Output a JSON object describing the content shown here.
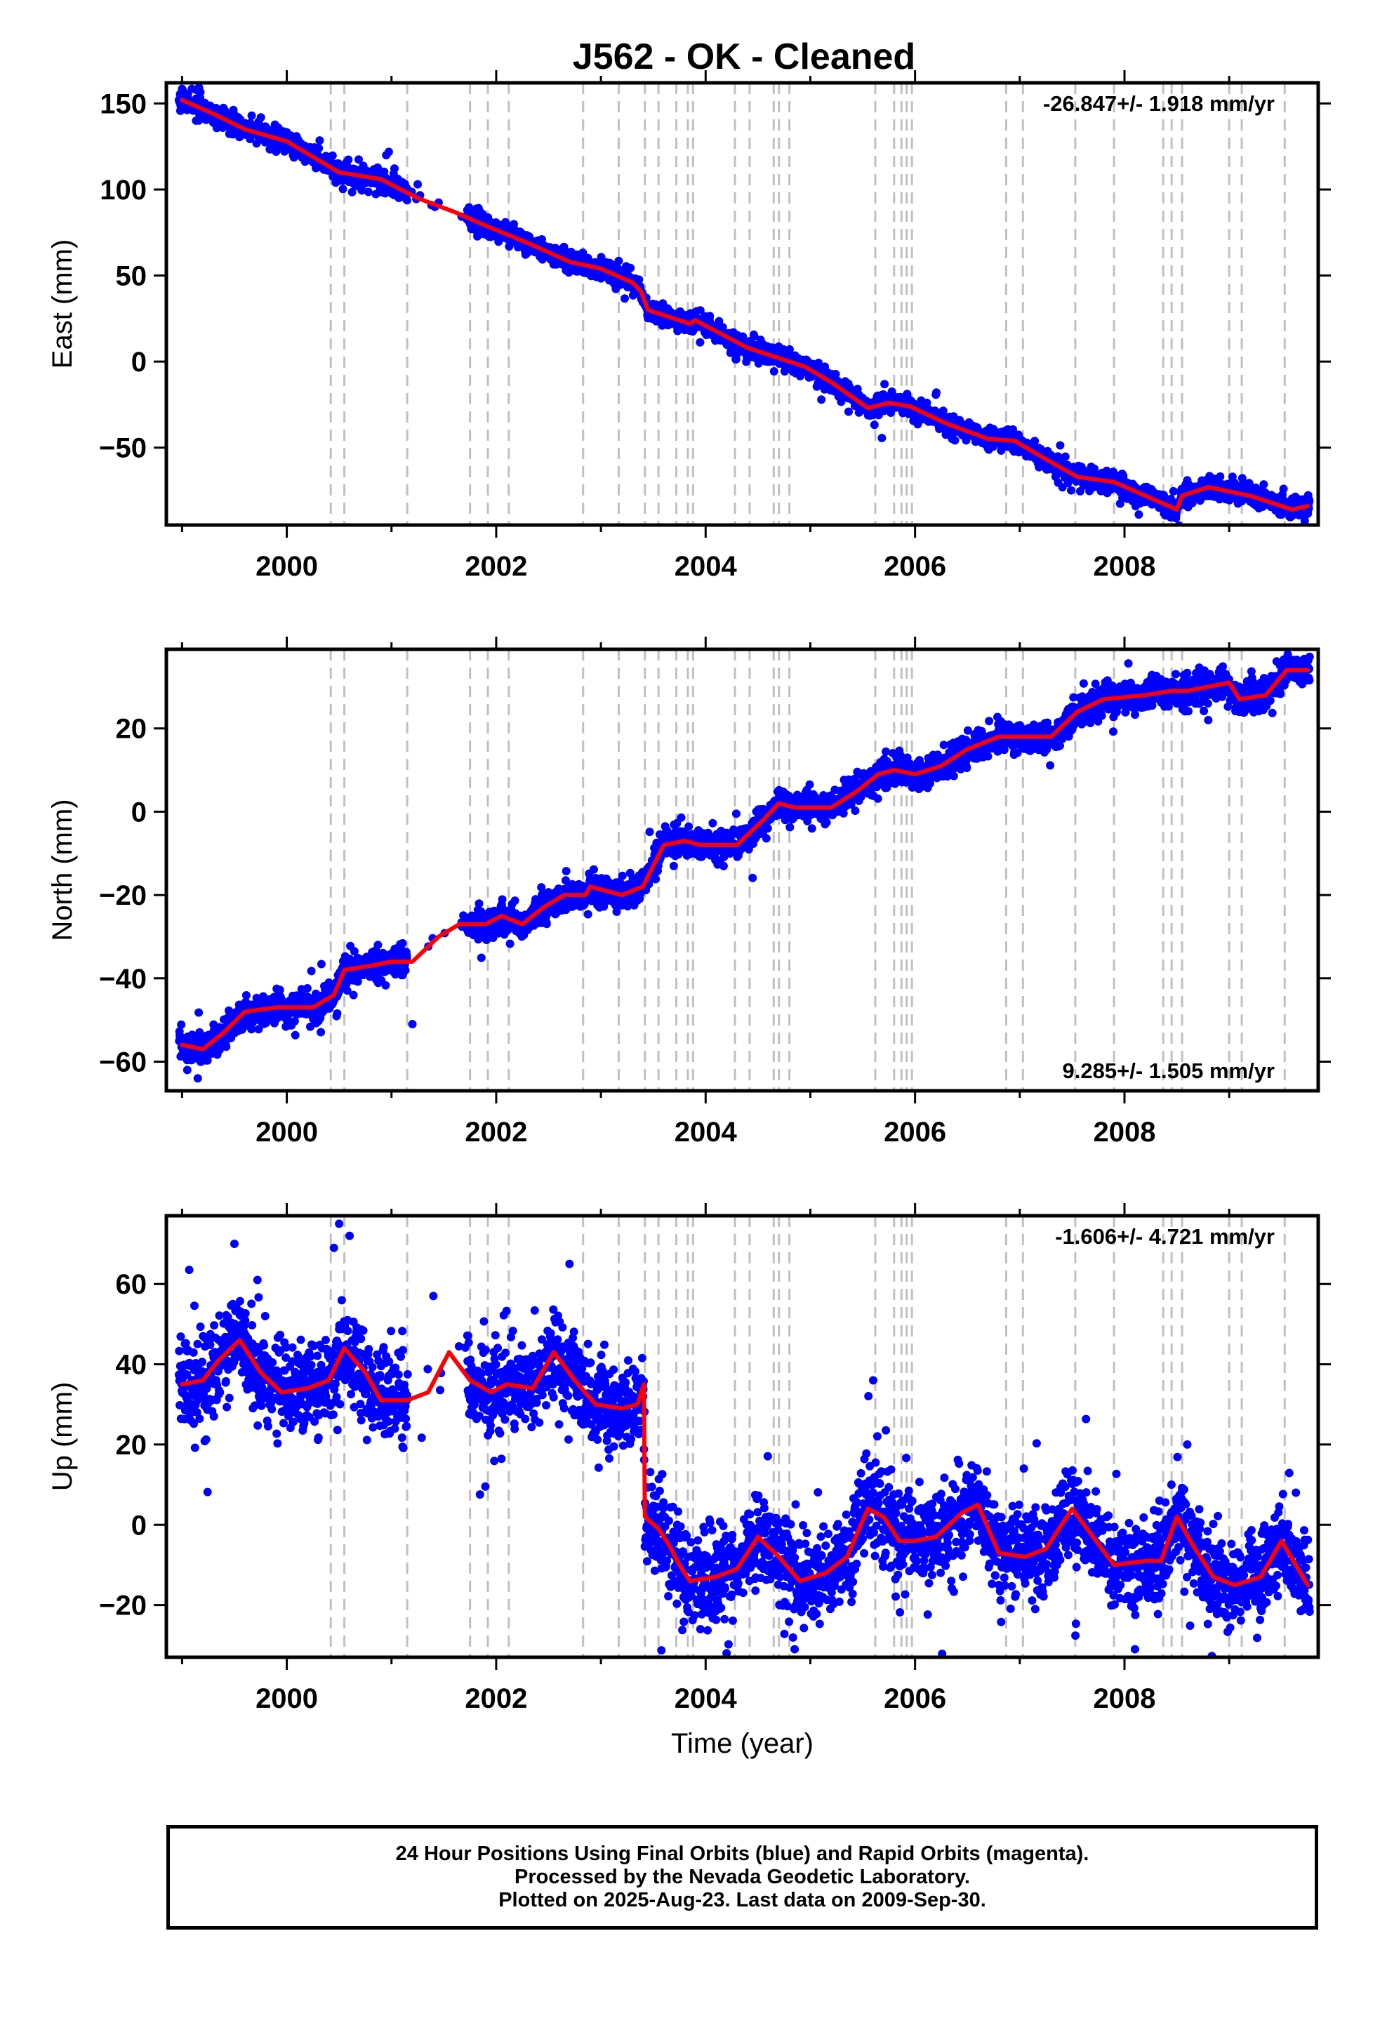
{
  "title": "J562  - OK - Cleaned",
  "footer": {
    "line1": "24 Hour Positions Using Final Orbits (blue) and Rapid Orbits (magenta).",
    "line2": "Processed by the Nevada Geodetic Laboratory.",
    "line3": "Plotted on 2025-Aug-23. Last data on 2009-Sep-30."
  },
  "colors": {
    "points": "#0000ff",
    "model": "#ff0000",
    "event_lines": "#c0c0c0",
    "frame": "#000000"
  },
  "chart_data": [
    {
      "type": "scatter",
      "id": "east",
      "ylabel": "East (mm)",
      "xlabel": "",
      "xlim": [
        1998.85,
        2009.85
      ],
      "ylim": [
        -95,
        162
      ],
      "xticks": [
        2000,
        2002,
        2004,
        2006,
        2008
      ],
      "yticks": [
        -50,
        0,
        50,
        100,
        150
      ],
      "rate_label": "-26.847+/- 1.918 mm/yr",
      "rate_position": "top-right",
      "event_lines": [
        2000.42,
        2000.55,
        2001.15,
        2001.75,
        2001.92,
        2002.12,
        2002.83,
        2003.17,
        2003.42,
        2003.55,
        2003.72,
        2003.83,
        2003.88,
        2004.28,
        2004.42,
        2004.65,
        2004.7,
        2004.8,
        2005.62,
        2005.8,
        2005.87,
        2005.92,
        2005.97,
        2006.87,
        2007.03,
        2007.53,
        2007.9,
        2008.37,
        2008.45,
        2008.55,
        2009.0,
        2009.12,
        2009.53
      ],
      "model_knots": [
        [
          1999.0,
          152
        ],
        [
          1999.3,
          144
        ],
        [
          1999.6,
          135
        ],
        [
          2000.0,
          128
        ],
        [
          2000.25,
          119
        ],
        [
          2000.5,
          110
        ],
        [
          2000.9,
          106
        ],
        [
          2001.25,
          95
        ],
        [
          2001.6,
          87
        ],
        [
          2001.9,
          79
        ],
        [
          2002.3,
          69
        ],
        [
          2002.7,
          58
        ],
        [
          2003.0,
          54
        ],
        [
          2003.3,
          46
        ],
        [
          2003.38,
          41
        ],
        [
          2003.45,
          30
        ],
        [
          2003.7,
          25
        ],
        [
          2003.85,
          22
        ],
        [
          2003.9,
          24
        ],
        [
          2004.15,
          16
        ],
        [
          2004.4,
          8
        ],
        [
          2004.7,
          2
        ],
        [
          2004.95,
          -3
        ],
        [
          2005.2,
          -12
        ],
        [
          2005.55,
          -27
        ],
        [
          2005.75,
          -24
        ],
        [
          2005.95,
          -26
        ],
        [
          2006.3,
          -36
        ],
        [
          2006.7,
          -45
        ],
        [
          2006.95,
          -46
        ],
        [
          2007.2,
          -55
        ],
        [
          2007.55,
          -67
        ],
        [
          2007.9,
          -70
        ],
        [
          2008.2,
          -78
        ],
        [
          2008.5,
          -86
        ],
        [
          2008.55,
          -78
        ],
        [
          2008.8,
          -73
        ],
        [
          2009.2,
          -78
        ],
        [
          2009.6,
          -86
        ],
        [
          2009.75,
          -84
        ]
      ],
      "noise_sd": 2.8,
      "outliers": [
        [
          1999.0,
          157
        ],
        [
          2000.95,
          120
        ],
        [
          2001.25,
          103
        ],
        [
          2008.85,
          -68
        ],
        [
          2009.3,
          -75
        ]
      ]
    },
    {
      "type": "scatter",
      "id": "north",
      "ylabel": "North (mm)",
      "xlabel": "",
      "xlim": [
        1998.85,
        2009.85
      ],
      "ylim": [
        -67,
        39
      ],
      "xticks": [
        2000,
        2002,
        2004,
        2006,
        2008
      ],
      "yticks": [
        -60,
        -40,
        -20,
        0,
        20
      ],
      "rate_label": "9.285+/- 1.505 mm/yr",
      "rate_position": "bottom-right",
      "event_lines": [
        2000.42,
        2000.55,
        2001.15,
        2001.75,
        2001.92,
        2002.12,
        2002.83,
        2003.17,
        2003.42,
        2003.55,
        2003.72,
        2003.83,
        2003.88,
        2004.28,
        2004.42,
        2004.65,
        2004.7,
        2004.8,
        2005.62,
        2005.8,
        2005.87,
        2005.92,
        2005.97,
        2006.87,
        2007.03,
        2007.53,
        2007.9,
        2008.37,
        2008.45,
        2008.55,
        2009.0,
        2009.12,
        2009.53
      ],
      "model_knots": [
        [
          1999.0,
          -56
        ],
        [
          1999.2,
          -57
        ],
        [
          1999.4,
          -53
        ],
        [
          1999.6,
          -48
        ],
        [
          1999.9,
          -47
        ],
        [
          2000.25,
          -47
        ],
        [
          2000.45,
          -44
        ],
        [
          2000.55,
          -38
        ],
        [
          2000.8,
          -37
        ],
        [
          2001.0,
          -36
        ],
        [
          2001.2,
          -36
        ],
        [
          2001.45,
          -30
        ],
        [
          2001.65,
          -27
        ],
        [
          2001.9,
          -27
        ],
        [
          2002.05,
          -25
        ],
        [
          2002.25,
          -27
        ],
        [
          2002.45,
          -23
        ],
        [
          2002.65,
          -20
        ],
        [
          2002.85,
          -20
        ],
        [
          2002.9,
          -18
        ],
        [
          2003.2,
          -20
        ],
        [
          2003.4,
          -18
        ],
        [
          2003.6,
          -8
        ],
        [
          2003.8,
          -7
        ],
        [
          2003.95,
          -8
        ],
        [
          2004.3,
          -8
        ],
        [
          2004.55,
          -2
        ],
        [
          2004.7,
          2
        ],
        [
          2004.85,
          1
        ],
        [
          2005.2,
          1
        ],
        [
          2005.45,
          5
        ],
        [
          2005.65,
          9
        ],
        [
          2005.8,
          10
        ],
        [
          2006.0,
          9
        ],
        [
          2006.25,
          11
        ],
        [
          2006.5,
          15
        ],
        [
          2006.8,
          18
        ],
        [
          2007.05,
          18
        ],
        [
          2007.3,
          18
        ],
        [
          2007.55,
          24
        ],
        [
          2007.8,
          27
        ],
        [
          2008.2,
          28
        ],
        [
          2008.45,
          29
        ],
        [
          2008.6,
          29
        ],
        [
          2009.0,
          31
        ],
        [
          2009.1,
          27
        ],
        [
          2009.35,
          28
        ],
        [
          2009.55,
          34
        ],
        [
          2009.75,
          34
        ]
      ],
      "noise_sd": 1.7,
      "outliers": [
        [
          1999.05,
          -62
        ],
        [
          1999.15,
          -64
        ],
        [
          2001.2,
          -51
        ],
        [
          2003.15,
          -24
        ],
        [
          2008.8,
          22
        ],
        [
          2009.5,
          33
        ]
      ]
    },
    {
      "type": "scatter",
      "id": "up",
      "ylabel": "Up (mm)",
      "xlabel": "Time (year)",
      "xlim": [
        1998.85,
        2009.85
      ],
      "ylim": [
        -33,
        77
      ],
      "xticks": [
        2000,
        2002,
        2004,
        2006,
        2008
      ],
      "yticks": [
        -20,
        0,
        20,
        40,
        60
      ],
      "rate_label": "-1.606+/- 4.721 mm/yr",
      "rate_position": "top-right",
      "event_lines": [
        2000.42,
        2000.55,
        2001.15,
        2001.75,
        2001.92,
        2002.12,
        2002.83,
        2003.17,
        2003.42,
        2003.55,
        2003.72,
        2003.83,
        2003.88,
        2004.28,
        2004.42,
        2004.65,
        2004.7,
        2004.8,
        2005.62,
        2005.8,
        2005.87,
        2005.92,
        2005.97,
        2006.87,
        2007.03,
        2007.53,
        2007.9,
        2008.37,
        2008.45,
        2008.55,
        2009.0,
        2009.12,
        2009.53
      ],
      "model_knots": [
        [
          1999.0,
          35
        ],
        [
          1999.2,
          36
        ],
        [
          1999.35,
          41
        ],
        [
          1999.55,
          46
        ],
        [
          1999.75,
          38
        ],
        [
          1999.95,
          33
        ],
        [
          2000.2,
          34
        ],
        [
          2000.4,
          36
        ],
        [
          2000.55,
          44
        ],
        [
          2000.75,
          38
        ],
        [
          2000.9,
          31
        ],
        [
          2001.15,
          31
        ],
        [
          2001.35,
          33
        ],
        [
          2001.55,
          43
        ],
        [
          2001.75,
          36
        ],
        [
          2001.95,
          33
        ],
        [
          2002.1,
          35
        ],
        [
          2002.35,
          34
        ],
        [
          2002.55,
          43
        ],
        [
          2002.75,
          36
        ],
        [
          2002.95,
          30
        ],
        [
          2003.2,
          29
        ],
        [
          2003.35,
          30
        ],
        [
          2003.41,
          35
        ],
        [
          2003.42,
          2
        ],
        [
          2003.55,
          -1
        ],
        [
          2003.65,
          -5
        ],
        [
          2003.75,
          -10
        ],
        [
          2003.85,
          -14
        ],
        [
          2004.1,
          -13
        ],
        [
          2004.3,
          -11
        ],
        [
          2004.5,
          -3
        ],
        [
          2004.7,
          -8
        ],
        [
          2004.9,
          -14
        ],
        [
          2005.15,
          -12
        ],
        [
          2005.35,
          -8
        ],
        [
          2005.55,
          4
        ],
        [
          2005.7,
          2
        ],
        [
          2005.85,
          -4
        ],
        [
          2006.0,
          -4
        ],
        [
          2006.2,
          -3
        ],
        [
          2006.45,
          3
        ],
        [
          2006.6,
          5
        ],
        [
          2006.8,
          -7
        ],
        [
          2007.05,
          -8
        ],
        [
          2007.25,
          -6
        ],
        [
          2007.5,
          4
        ],
        [
          2007.7,
          -3
        ],
        [
          2007.9,
          -10
        ],
        [
          2008.2,
          -9
        ],
        [
          2008.35,
          -9
        ],
        [
          2008.5,
          2
        ],
        [
          2008.65,
          -5
        ],
        [
          2008.85,
          -13
        ],
        [
          2009.05,
          -15
        ],
        [
          2009.3,
          -13
        ],
        [
          2009.5,
          -4
        ],
        [
          2009.75,
          -15
        ]
      ],
      "noise_sd": 5.5,
      "outliers": [
        [
          2000.45,
          69
        ],
        [
          2000.5,
          75
        ],
        [
          2000.6,
          72
        ],
        [
          1999.5,
          70
        ],
        [
          2002.7,
          65
        ],
        [
          2005.6,
          36
        ],
        [
          2003.95,
          -26
        ],
        [
          2004.2,
          -32
        ],
        [
          2004.85,
          -31
        ],
        [
          2008.1,
          -31
        ],
        [
          2008.6,
          20
        ],
        [
          2001.4,
          57
        ]
      ]
    }
  ]
}
